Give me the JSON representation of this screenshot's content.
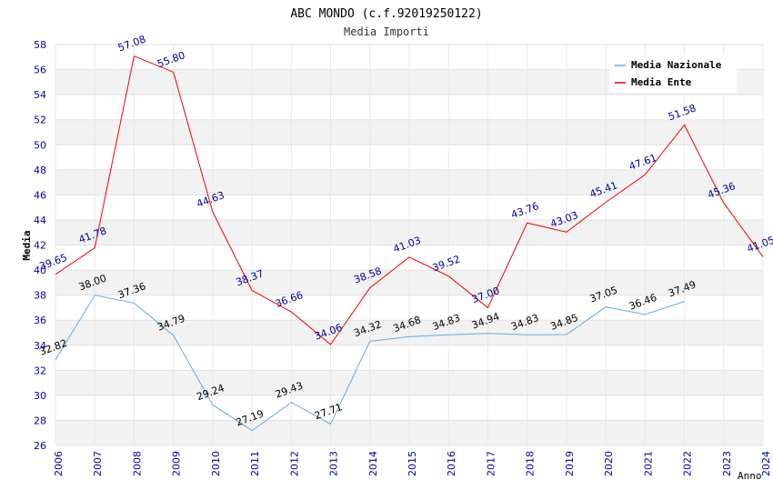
{
  "chart_data": {
    "type": "line",
    "title": "ABC MONDO (c.f.92019250122)",
    "subtitle": "Media Importi",
    "xlabel": "Anno",
    "ylabel": "Media",
    "xlim": [
      2006,
      2024
    ],
    "ylim": [
      26,
      58
    ],
    "y_ticks": [
      26,
      28,
      30,
      32,
      34,
      36,
      38,
      40,
      42,
      44,
      46,
      48,
      50,
      52,
      54,
      56,
      58
    ],
    "x_ticks": [
      2006,
      2007,
      2008,
      2009,
      2010,
      2011,
      2012,
      2013,
      2014,
      2015,
      2016,
      2017,
      2018,
      2019,
      2020,
      2021,
      2022,
      2023,
      2024
    ],
    "grid": "horizontal bands",
    "legend_position": "top-right",
    "series": [
      {
        "name": "Media Nazionale",
        "color": "#66aadd",
        "label_color": "#000000",
        "x": [
          2006,
          2007,
          2008,
          2009,
          2010,
          2011,
          2012,
          2013,
          2014,
          2015,
          2016,
          2017,
          2018,
          2019,
          2020,
          2021,
          2022
        ],
        "values": [
          32.82,
          38.0,
          37.36,
          34.79,
          29.24,
          27.19,
          29.43,
          27.71,
          34.32,
          34.68,
          34.83,
          34.94,
          34.83,
          34.85,
          37.05,
          36.46,
          37.49
        ],
        "labels": [
          "32.82",
          "38.00",
          "37.36",
          "34.79",
          "29.24",
          "27.19",
          "29.43",
          "27.71",
          "34.32",
          "34.68",
          "34.83",
          "34.94",
          "34.83",
          "34.85",
          "37.05",
          "36.46",
          "37.49"
        ]
      },
      {
        "name": "Media Ente",
        "color": "#ee0000",
        "label_color": "#000099",
        "x": [
          2006,
          2007,
          2008,
          2009,
          2010,
          2011,
          2012,
          2013,
          2014,
          2015,
          2016,
          2017,
          2018,
          2019,
          2020,
          2021,
          2022,
          2023,
          2024
        ],
        "values": [
          39.65,
          41.78,
          57.08,
          55.8,
          44.63,
          38.37,
          36.66,
          34.06,
          38.58,
          41.03,
          39.52,
          37.0,
          43.76,
          43.03,
          45.41,
          47.61,
          51.58,
          45.36,
          41.05
        ],
        "labels": [
          "39.65",
          "41.78",
          "57.08",
          "55.80",
          "44.63",
          "38.37",
          "36.66",
          "34.06",
          "38.58",
          "41.03",
          "39.52",
          "37.00",
          "43.76",
          "43.03",
          "45.41",
          "47.61",
          "51.58",
          "45.36",
          "41.05"
        ]
      }
    ]
  }
}
